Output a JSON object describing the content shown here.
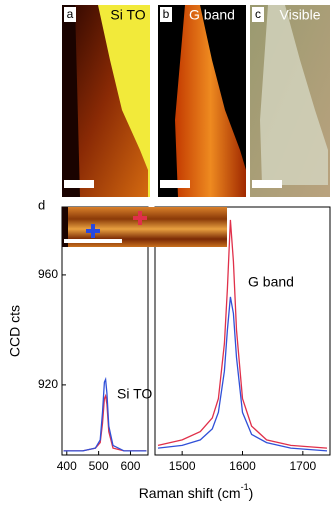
{
  "panels": [
    {
      "label": "a",
      "title": "Si TO"
    },
    {
      "label": "b",
      "title": "G band"
    },
    {
      "label": "c",
      "title": "Visible"
    }
  ],
  "chart_data": {
    "type": "line",
    "panel_label": "d",
    "ylabel": "CCD cts",
    "xlabel": [
      "Raman shift (cm",
      "-1",
      ")"
    ],
    "ylim": [
      894.5,
      984.7
    ],
    "yticks": [
      920,
      960
    ],
    "annotations": [
      "Si TO",
      "G band"
    ],
    "segments": [
      {
        "xlim": [
          385,
          655
        ],
        "xticks": [
          400,
          500,
          600
        ],
        "x": [
          390,
          450,
          490,
          505,
          512,
          518,
          522,
          526,
          532,
          545,
          580,
          640,
          650
        ],
        "series": [
          {
            "color": "#e0304a",
            "values": [
              896,
              896,
              897,
              899,
              906,
              915,
              916,
              913,
              903,
              897,
              896,
              896,
              896
            ]
          },
          {
            "color": "#3050d8",
            "values": [
              896,
              896,
              897,
              900,
              910,
              921,
              922,
              917,
              905,
              898,
              896,
              896,
              896
            ]
          }
        ]
      },
      {
        "xlim": [
          1455,
          1745
        ],
        "xticks": [
          1500,
          1600,
          1700
        ],
        "x": [
          1460,
          1500,
          1530,
          1550,
          1560,
          1570,
          1575,
          1580,
          1585,
          1590,
          1600,
          1615,
          1640,
          1680,
          1740
        ],
        "series": [
          {
            "color": "#e0304a",
            "values": [
              898,
              900,
              903,
              908,
              915,
              935,
              955,
              980,
              965,
              940,
              915,
              905,
              900,
              898,
              897
            ]
          },
          {
            "color": "#3050d8",
            "values": [
              897,
              898,
              900,
              904,
              910,
              925,
              940,
              952,
              946,
              930,
              910,
              902,
              899,
              897,
              896
            ]
          }
        ]
      }
    ]
  }
}
